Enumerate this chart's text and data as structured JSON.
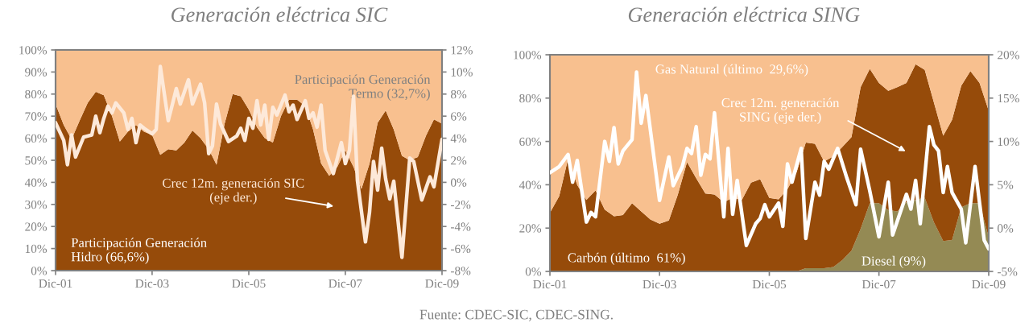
{
  "chart_data": [
    {
      "type": "area",
      "title": "Generación eléctrica SIC",
      "stacked": true,
      "x": [
        "2001-12",
        "2002-02",
        "2002-04",
        "2002-06",
        "2002-08",
        "2002-10",
        "2002-12",
        "2003-02",
        "2003-04",
        "2003-06",
        "2003-08",
        "2003-10",
        "2003-12",
        "2004-02",
        "2004-04",
        "2004-06",
        "2004-08",
        "2004-10",
        "2004-12",
        "2005-02",
        "2005-04",
        "2005-06",
        "2005-08",
        "2005-10",
        "2005-12",
        "2006-02",
        "2006-04",
        "2006-06",
        "2006-08",
        "2006-10",
        "2006-12",
        "2007-02",
        "2007-04",
        "2007-06",
        "2007-08",
        "2007-10",
        "2007-12",
        "2008-02",
        "2008-04",
        "2008-06",
        "2008-08",
        "2008-10",
        "2008-12",
        "2009-02",
        "2009-04",
        "2009-06",
        "2009-08",
        "2009-10",
        "2009-12"
      ],
      "series": [
        {
          "name": "Participación Generación\nHidro (66,6%)",
          "color": "#964b0a",
          "values": [
            75.5,
            66,
            59.5,
            68,
            76,
            81,
            79.5,
            70,
            58.5,
            63,
            66,
            63,
            61.5,
            52.5,
            55,
            54.5,
            58,
            63.5,
            60,
            55,
            48,
            66.5,
            80,
            79,
            73,
            65,
            60,
            58,
            70,
            77.5,
            77.5,
            74.5,
            64,
            48.5,
            43,
            47,
            54.5,
            47,
            37,
            48.5,
            67,
            72.5,
            64,
            52,
            50,
            51.5,
            61,
            68.5,
            66.6
          ]
        },
        {
          "name": "Participación Generación\nTermo (32,7%)",
          "color": "#f8c08f",
          "values": [
            24.5,
            34,
            40.5,
            32,
            24,
            19,
            20.5,
            30,
            41.5,
            37,
            34,
            37,
            38.5,
            47.5,
            45,
            45.5,
            42,
            36.5,
            40,
            45,
            52,
            33.5,
            20,
            21,
            27,
            35,
            40,
            42,
            30,
            22.5,
            22.5,
            25.5,
            36,
            51.5,
            57,
            53,
            45.5,
            53,
            63,
            51.5,
            33,
            27.5,
            36,
            48,
            50,
            48.5,
            39,
            31.5,
            33.4
          ]
        },
        {
          "name": "Crec 12m. generación SIC\n(eje der.)",
          "type": "line",
          "axis": "y2",
          "color": "#fde9d9",
          "x": [
            "2001-12",
            "2002-02",
            "2002-03",
            "2002-04",
            "2002-05",
            "2002-07",
            "2002-08",
            "2002-09",
            "2002-10",
            "2002-11",
            "2002-12",
            "2003-01",
            "2003-02",
            "2003-03",
            "2003-05",
            "2003-06",
            "2003-07",
            "2003-08",
            "2003-09",
            "2003-10",
            "2003-12",
            "2004-01",
            "2004-02",
            "2004-04",
            "2004-05",
            "2004-06",
            "2004-07",
            "2004-09",
            "2004-10",
            "2004-12",
            "2005-01",
            "2005-02",
            "2005-03",
            "2005-04",
            "2005-05",
            "2005-07",
            "2005-09",
            "2005-10",
            "2005-11",
            "2005-12",
            "2006-01",
            "2006-02",
            "2006-03",
            "2006-04",
            "2006-05",
            "2006-06",
            "2006-07",
            "2006-09",
            "2006-10",
            "2006-11",
            "2006-12",
            "2007-02",
            "2007-03",
            "2007-04",
            "2007-05",
            "2007-06",
            "2007-07",
            "2007-09",
            "2007-11",
            "2007-12",
            "2008-01",
            "2008-02",
            "2008-03",
            "2008-05",
            "2008-06",
            "2008-07",
            "2008-08",
            "2008-09",
            "2008-10",
            "2008-11",
            "2008-12",
            "2009-02",
            "2009-04",
            "2009-05",
            "2009-07",
            "2009-09",
            "2009-10",
            "2009-12"
          ],
          "values": [
            5.4,
            3.8,
            1.6,
            4.3,
            2.3,
            4.1,
            4.2,
            4.3,
            6.0,
            4.5,
            5.8,
            6.9,
            6.3,
            7.2,
            6.3,
            4.8,
            5.8,
            3.6,
            5.2,
            4.9,
            4.4,
            4.8,
            10.5,
            5.6,
            7.0,
            8.5,
            7.1,
            9.3,
            7.1,
            8.9,
            7.2,
            2.6,
            3.3,
            7.1,
            5.3,
            3.7,
            4.2,
            4.9,
            3.8,
            5.8,
            4.9,
            7.4,
            5.2,
            7.0,
            3.9,
            6.8,
            6.1,
            7.9,
            6.4,
            7.0,
            5.7,
            7.4,
            5.8,
            6.3,
            5.0,
            7.0,
            2.9,
            0.8,
            3.6,
            1.7,
            2.9,
            7.8,
            0.2,
            -5.4,
            -2.7,
            1.9,
            -0.7,
            3.1,
            0.3,
            -1.5,
            0.1,
            -6.8,
            2.2,
            1.9,
            -1.6,
            0.5,
            -0.4,
            3.9
          ]
        }
      ],
      "xlim": [
        "2001-12",
        "2009-12"
      ],
      "xticks": [
        {
          "value": "2001-12",
          "label": "Dic-01"
        },
        {
          "value": "2003-12",
          "label": "Dic-03"
        },
        {
          "value": "2005-12",
          "label": "Dic-05"
        },
        {
          "value": "2007-12",
          "label": "Dic-07"
        },
        {
          "value": "2009-12",
          "label": "Dic-09"
        }
      ],
      "ylim": [
        0,
        100
      ],
      "yticks": [
        {
          "value": 0,
          "label": "0%"
        },
        {
          "value": 10,
          "label": "10%"
        },
        {
          "value": 20,
          "label": "20%"
        },
        {
          "value": 30,
          "label": "30%"
        },
        {
          "value": 40,
          "label": "40%"
        },
        {
          "value": 50,
          "label": "50%"
        },
        {
          "value": 60,
          "label": "60%"
        },
        {
          "value": 70,
          "label": "70%"
        },
        {
          "value": 80,
          "label": "80%"
        },
        {
          "value": 90,
          "label": "90%"
        },
        {
          "value": 100,
          "label": "100%"
        }
      ],
      "y2lim": [
        -8,
        12
      ],
      "y2ticks": [
        {
          "value": -8,
          "label": "-8%"
        },
        {
          "value": -6,
          "label": "-6%"
        },
        {
          "value": -4,
          "label": "-4%"
        },
        {
          "value": -2,
          "label": "-2%"
        },
        {
          "value": 0,
          "label": "0%"
        },
        {
          "value": 2,
          "label": "2%"
        },
        {
          "value": 4,
          "label": "4%"
        },
        {
          "value": 6,
          "label": "6%"
        },
        {
          "value": 8,
          "label": "8%"
        },
        {
          "value": 10,
          "label": "10%"
        },
        {
          "value": 12,
          "label": "12%"
        }
      ]
    },
    {
      "type": "area",
      "title": "Generación eléctrica SING",
      "stacked": true,
      "x": [
        "2001-12",
        "2002-02",
        "2002-04",
        "2002-06",
        "2002-08",
        "2002-10",
        "2002-12",
        "2003-02",
        "2003-04",
        "2003-06",
        "2003-08",
        "2003-10",
        "2003-12",
        "2004-02",
        "2004-04",
        "2004-06",
        "2004-08",
        "2004-10",
        "2004-12",
        "2005-02",
        "2005-04",
        "2005-06",
        "2005-08",
        "2005-10",
        "2005-12",
        "2006-02",
        "2006-04",
        "2006-06",
        "2006-08",
        "2006-10",
        "2006-12",
        "2007-02",
        "2007-04",
        "2007-06",
        "2007-08",
        "2007-10",
        "2007-12",
        "2008-02",
        "2008-04",
        "2008-06",
        "2008-08",
        "2008-10",
        "2008-12",
        "2009-02",
        "2009-04",
        "2009-06",
        "2009-08",
        "2009-10",
        "2009-12"
      ],
      "series": [
        {
          "name": "Diesel (9%)",
          "color": "#948a54",
          "values": [
            0,
            0,
            0,
            0,
            0,
            0,
            0,
            0,
            0,
            0,
            0,
            0,
            0,
            0,
            0,
            0,
            0,
            0,
            0,
            0,
            0,
            0,
            0,
            0,
            0,
            0,
            0,
            0,
            1.5,
            1.5,
            1.5,
            2,
            5.2,
            9.6,
            19.6,
            31.5,
            31.5,
            28.3,
            27.7,
            32,
            33,
            34,
            22.7,
            14,
            14.5,
            29.6,
            31.5,
            31.5,
            15.8
          ]
        },
        {
          "name": "Carbón (último  61%)",
          "color": "#964b0a",
          "values": [
            27,
            34.8,
            52,
            39.9,
            33,
            37.4,
            28.5,
            25.5,
            26,
            31.5,
            27.7,
            24,
            22,
            23.5,
            35.5,
            50.5,
            43,
            36,
            35.5,
            32,
            34,
            33,
            41,
            42.6,
            33.9,
            33.3,
            38,
            45.8,
            58,
            57.4,
            49.2,
            51.2,
            52.2,
            52.4,
            65.4,
            62,
            55.5,
            55.1,
            57.3,
            55,
            62.6,
            59,
            55.3,
            48.6,
            55.5,
            56.1,
            61,
            55.5,
            58.4
          ]
        },
        {
          "name": "Gas Natural (último  29,6%)",
          "color": "#f8c08f",
          "values": [
            73,
            65.2,
            48,
            60.1,
            67,
            62.6,
            71.5,
            74.5,
            74,
            68.5,
            72.3,
            76,
            78,
            76.5,
            64.5,
            49.5,
            57,
            64,
            64.5,
            68,
            66,
            67,
            59,
            57.4,
            66.1,
            66.7,
            62,
            54.2,
            40.5,
            41.1,
            49.3,
            46.8,
            42.6,
            38,
            15,
            6.5,
            13,
            16.6,
            15,
            13,
            4.4,
            7,
            22,
            37.4,
            30,
            14.3,
            7.5,
            13,
            25.8
          ]
        },
        {
          "name": "Crec 12m. generación\nSING (eje der.)",
          "type": "line",
          "axis": "y2",
          "color": "#ffffff",
          "x": [
            "2001-12",
            "2002-02",
            "2002-04",
            "2002-05",
            "2002-06",
            "2002-08",
            "2002-09",
            "2002-10",
            "2002-12",
            "2003-01",
            "2003-02",
            "2003-03",
            "2003-04",
            "2003-06",
            "2003-07",
            "2003-08",
            "2003-09",
            "2003-12",
            "2004-02",
            "2004-03",
            "2004-05",
            "2004-06",
            "2004-07",
            "2004-08",
            "2004-09",
            "2004-10",
            "2004-11",
            "2004-12",
            "2005-02",
            "2005-03",
            "2005-04",
            "2005-05",
            "2005-07",
            "2005-09",
            "2005-10",
            "2005-11",
            "2005-12",
            "2006-02",
            "2006-03",
            "2006-04",
            "2006-05",
            "2006-07",
            "2006-08",
            "2006-10",
            "2006-11",
            "2006-12",
            "2007-01",
            "2007-03",
            "2007-05",
            "2007-07",
            "2007-08",
            "2007-10",
            "2007-12",
            "2008-02",
            "2008-03",
            "2008-06",
            "2008-07",
            "2008-08",
            "2008-09",
            "2008-11",
            "2008-12",
            "2009-01",
            "2009-02",
            "2009-03",
            "2009-04",
            "2009-06",
            "2009-07",
            "2009-09",
            "2009-11",
            "2009-12"
          ],
          "values": [
            6.4,
            7.1,
            8.5,
            5.3,
            7.8,
            0.7,
            1.8,
            1.3,
            10.0,
            7.7,
            11.6,
            7.4,
            8.9,
            10.2,
            18.0,
            12.1,
            15.3,
            3.2,
            8.2,
            4.9,
            7.1,
            9.2,
            8.6,
            11.7,
            6.1,
            8.5,
            8.0,
            13.3,
            1.3,
            9.2,
            1.6,
            5.5,
            -2.0,
            0.5,
            1.1,
            2.7,
            1.3,
            2.9,
            0.2,
            7.4,
            5.3,
            9.2,
            -1.2,
            5.3,
            3.8,
            7.7,
            6.8,
            9.2,
            5.8,
            2.7,
            9.1,
            4.3,
            -1.0,
            5.3,
            -0.8,
            3.9,
            2.2,
            5.5,
            0.5,
            11.7,
            9.6,
            8.9,
            4.1,
            7.1,
            4.1,
            2.2,
            -1.7,
            7.1,
            -1.4,
            -2.4
          ]
        }
      ],
      "xlim": [
        "2001-12",
        "2009-12"
      ],
      "xticks": [
        {
          "value": "2001-12",
          "label": "Dic-01"
        },
        {
          "value": "2003-12",
          "label": "Dic-03"
        },
        {
          "value": "2005-12",
          "label": "Dic-05"
        },
        {
          "value": "2007-12",
          "label": "Dic-07"
        },
        {
          "value": "2009-12",
          "label": "Dic-09"
        }
      ],
      "ylim": [
        0,
        100
      ],
      "yticks": [
        {
          "value": 0,
          "label": "0%"
        },
        {
          "value": 20,
          "label": "20%"
        },
        {
          "value": 40,
          "label": "40%"
        },
        {
          "value": 60,
          "label": "60%"
        },
        {
          "value": 80,
          "label": "80%"
        },
        {
          "value": 100,
          "label": "100%"
        }
      ],
      "y2lim": [
        -5,
        20
      ],
      "y2ticks": [
        {
          "value": -5,
          "label": "-5%"
        },
        {
          "value": 0,
          "label": "0%"
        },
        {
          "value": 5,
          "label": "5%"
        },
        {
          "value": 10,
          "label": "10%"
        },
        {
          "value": 15,
          "label": "15%"
        },
        {
          "value": 20,
          "label": "20%"
        }
      ],
      "annotations": [
        "Fuente: CDEC-SIC, CDEC-SING."
      ]
    }
  ]
}
